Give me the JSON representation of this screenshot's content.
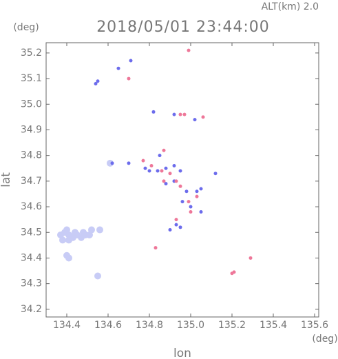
{
  "chart_data": {
    "type": "scatter",
    "title": "2018/05/01 23:44:00",
    "subtitle": "ALT(km) 2.0",
    "x_label": "lon",
    "y_label": "lat",
    "x_unit": "(deg)",
    "y_unit": "(deg)",
    "xlim": [
      134.3,
      135.62
    ],
    "ylim": [
      34.17,
      35.24
    ],
    "xticks": [
      134.4,
      134.6,
      134.8,
      {
        "value": 135,
        "label": "135.0"
      },
      135.2,
      135.4,
      135.6
    ],
    "yticks": [
      {
        "value": 34.2,
        "label": "34.2"
      },
      34.3,
      34.4,
      34.5,
      34.6,
      34.7,
      34.8,
      34.9,
      {
        "value": 35,
        "label": "35.0"
      },
      35.1,
      35.2
    ],
    "series": [
      {
        "color": "#c8ccf6",
        "x": [
          134.37,
          134.39,
          134.41,
          134.43,
          134.45,
          134.47,
          134.49,
          134.51,
          134.52,
          134.4,
          134.44,
          134.48,
          134.38,
          134.41,
          134.56,
          134.4,
          134.41,
          134.55,
          134.61
        ],
        "y": [
          34.49,
          34.5,
          34.49,
          34.48,
          34.49,
          34.48,
          34.49,
          34.49,
          34.51,
          34.51,
          34.5,
          34.5,
          34.47,
          34.47,
          34.51,
          34.41,
          34.4,
          34.33,
          34.77
        ]
      },
      {
        "color": "#6c6cec",
        "x": [
          134.54,
          134.55,
          134.62,
          134.7,
          134.78,
          134.8,
          134.84,
          134.88,
          134.92,
          134.95,
          134.88,
          134.92,
          134.98,
          135.03,
          135.05,
          134.96,
          135.0,
          135.05,
          134.95,
          134.9,
          134.92,
          135.02,
          134.65,
          134.71,
          134.85,
          134.93,
          134.82,
          135.12
        ],
        "y": [
          35.08,
          35.09,
          34.77,
          34.77,
          34.75,
          34.74,
          34.74,
          34.75,
          34.76,
          34.74,
          34.69,
          34.7,
          34.66,
          34.66,
          34.67,
          34.62,
          34.6,
          34.58,
          34.52,
          34.51,
          34.96,
          34.94,
          35.14,
          35.17,
          34.8,
          34.53,
          34.97,
          34.73
        ]
      },
      {
        "color": "#ee7799",
        "x": [
          134.99,
          134.95,
          134.97,
          135.06,
          134.87,
          134.86,
          134.9,
          134.95,
          134.99,
          135.03,
          135.0,
          134.93,
          134.83,
          135.2,
          135.29,
          135.21,
          134.81,
          134.93,
          134.7,
          134.87,
          134.77
        ],
        "y": [
          35.21,
          34.96,
          34.96,
          34.95,
          34.82,
          34.74,
          34.73,
          34.68,
          34.62,
          34.64,
          34.58,
          34.55,
          34.44,
          34.34,
          34.4,
          34.345,
          34.76,
          34.7,
          35.1,
          34.7,
          34.78
        ]
      }
    ]
  }
}
